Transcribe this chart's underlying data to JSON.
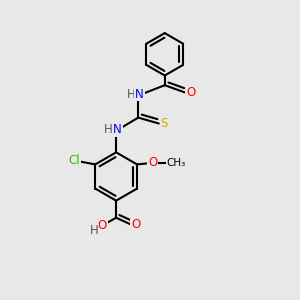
{
  "bg_color": "#e8e8e8",
  "bond_color": "#000000",
  "bond_width": 1.5,
  "atom_colors": {
    "O": "#ff0000",
    "N": "#0000ff",
    "S": "#ccaa00",
    "Cl": "#33bb00",
    "C": "#000000",
    "H": "#555555"
  },
  "font_size": 8.5,
  "fig_size": [
    3.0,
    3.0
  ],
  "dpi": 100
}
